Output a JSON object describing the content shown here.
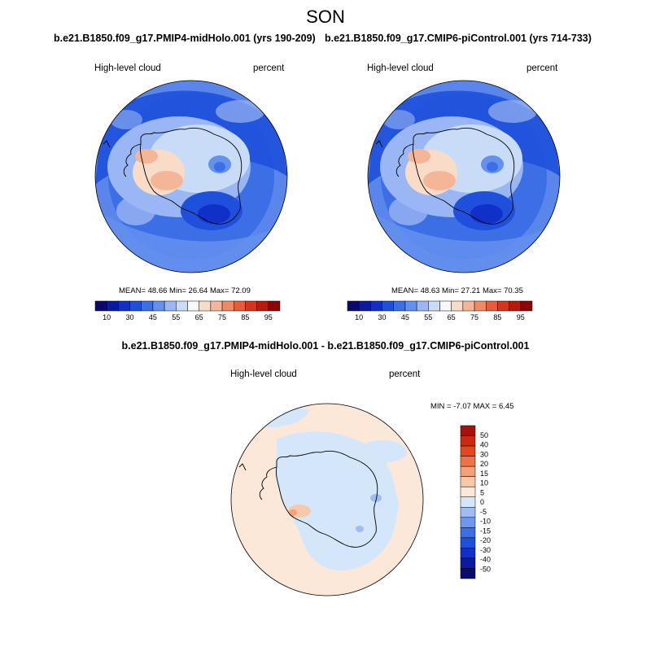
{
  "page": {
    "title": "SON",
    "diff_title": "b.e21.B1850.f09_g17.PMIP4-midHolo.001 - b.e21.B1850.f09_g17.CMIP6-piControl.001"
  },
  "panels": [
    {
      "case": "b.e21.B1850.f09_g17.PMIP4-midHolo.001 (yrs 190-209)",
      "left_label": "High-level cloud",
      "right_label": "percent",
      "stats": "MEAN=  48.66  Min=  26.64  Max=  72.09"
    },
    {
      "case": "b.e21.B1850.f09_g17.CMIP6-piControl.001 (yrs 714-733)",
      "left_label": "High-level cloud",
      "right_label": "percent",
      "stats": "MEAN=  48.63  Min=  27.21  Max=  70.35"
    }
  ],
  "diff_panel": {
    "left_label": "High-level cloud",
    "right_label": "percent",
    "stats": "MIN =  -7.07 MAX =   6.45"
  },
  "colorbar_main": {
    "colors": [
      "#0a0a6e",
      "#0b1a9e",
      "#1030c8",
      "#1e50dc",
      "#3c6ee6",
      "#6490ee",
      "#9ab6f4",
      "#c8dcf8",
      "#f8f8f8",
      "#f8dcc8",
      "#f4b696",
      "#ee8a66",
      "#e65c3c",
      "#d6341e",
      "#b81a0e",
      "#8c0606"
    ],
    "labels": [
      "10",
      "30",
      "45",
      "55",
      "65",
      "75",
      "85",
      "95"
    ]
  },
  "colorbar_diff": {
    "colors": [
      "#0a0a6e",
      "#0b1a9e",
      "#1030c8",
      "#1e50dc",
      "#3c6ee6",
      "#6e98ee",
      "#a0bcf4",
      "#d4e6fa",
      "#fbe8d8",
      "#f8c8a8",
      "#f4a078",
      "#ee7448",
      "#e4461e",
      "#cc2a0e",
      "#a8100a"
    ],
    "labels": [
      "50",
      "40",
      "30",
      "20",
      "15",
      "10",
      "5",
      "0",
      "-5",
      "-10",
      "-15",
      "-20",
      "-30",
      "-40",
      "-50"
    ]
  }
}
